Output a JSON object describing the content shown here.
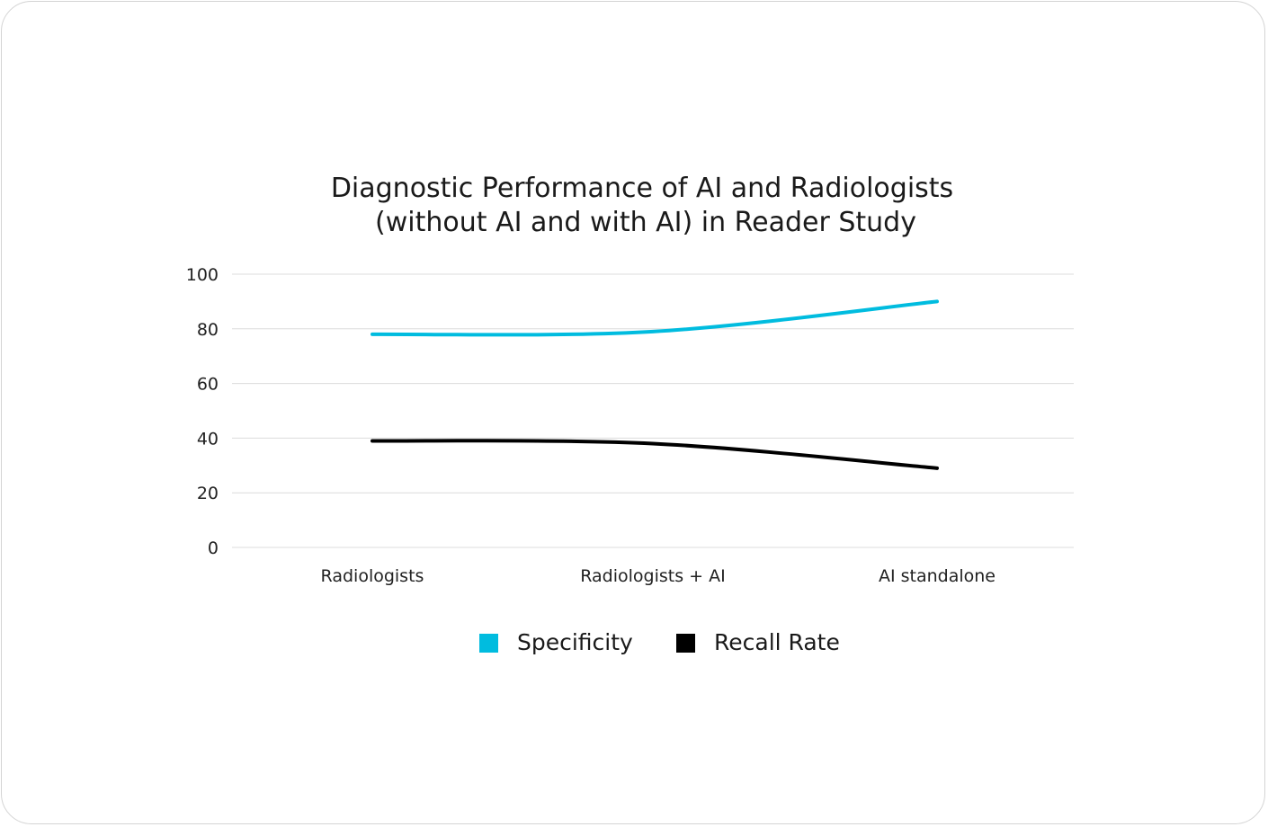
{
  "chart_data": {
    "type": "line",
    "title": [
      "Diagnostic Performance of AI and Radiologists",
      "(without AI and with AI) in Reader Study"
    ],
    "categories": [
      "Radiologists",
      "Radiologists + AI",
      "AI standalone"
    ],
    "series": [
      {
        "name": "Specificity",
        "values": [
          78,
          79,
          90
        ],
        "color": "#00bcdf"
      },
      {
        "name": "Recall Rate",
        "values": [
          39,
          38,
          29
        ],
        "color": "#000000"
      }
    ],
    "ylim": [
      0,
      100
    ],
    "yticks": [
      "0",
      "20",
      "40",
      "60",
      "80",
      "100"
    ],
    "grid": true,
    "legend_position": "bottom",
    "smooth": true
  }
}
